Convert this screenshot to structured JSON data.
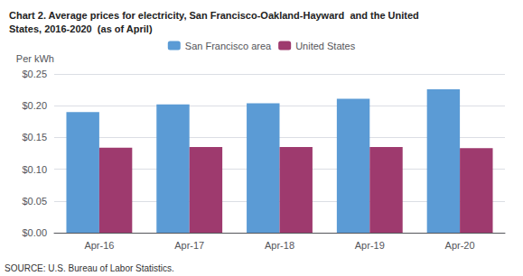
{
  "chart_data": {
    "type": "bar",
    "title": "Chart 2. Average prices for electricity, San Francisco-Oakland-Hayward  and the United\nStates, 2016-2020  (as of April)",
    "ylabel": "Per kWh",
    "source": "SOURCE: U.S. Bureau of Labor Statistics.",
    "categories": [
      "Apr-16",
      "Apr-17",
      "Apr-18",
      "Apr-19",
      "Apr-20"
    ],
    "series": [
      {
        "name": "San Francisco area",
        "color": "#5B9BD5",
        "values": [
          0.19,
          0.202,
          0.204,
          0.211,
          0.226
        ]
      },
      {
        "name": "United States",
        "color": "#9E3A6E",
        "values": [
          0.134,
          0.135,
          0.135,
          0.135,
          0.133
        ]
      }
    ],
    "ylim": [
      0,
      0.25
    ],
    "yticks": [
      {
        "value": 0.0,
        "label": "$0.00"
      },
      {
        "value": 0.05,
        "label": "$0.05"
      },
      {
        "value": 0.1,
        "label": "$0.10"
      },
      {
        "value": 0.15,
        "label": "$0.15"
      },
      {
        "value": 0.2,
        "label": "$0.20"
      },
      {
        "value": 0.25,
        "label": "$0.25"
      }
    ],
    "grid": true,
    "legend": "top"
  }
}
